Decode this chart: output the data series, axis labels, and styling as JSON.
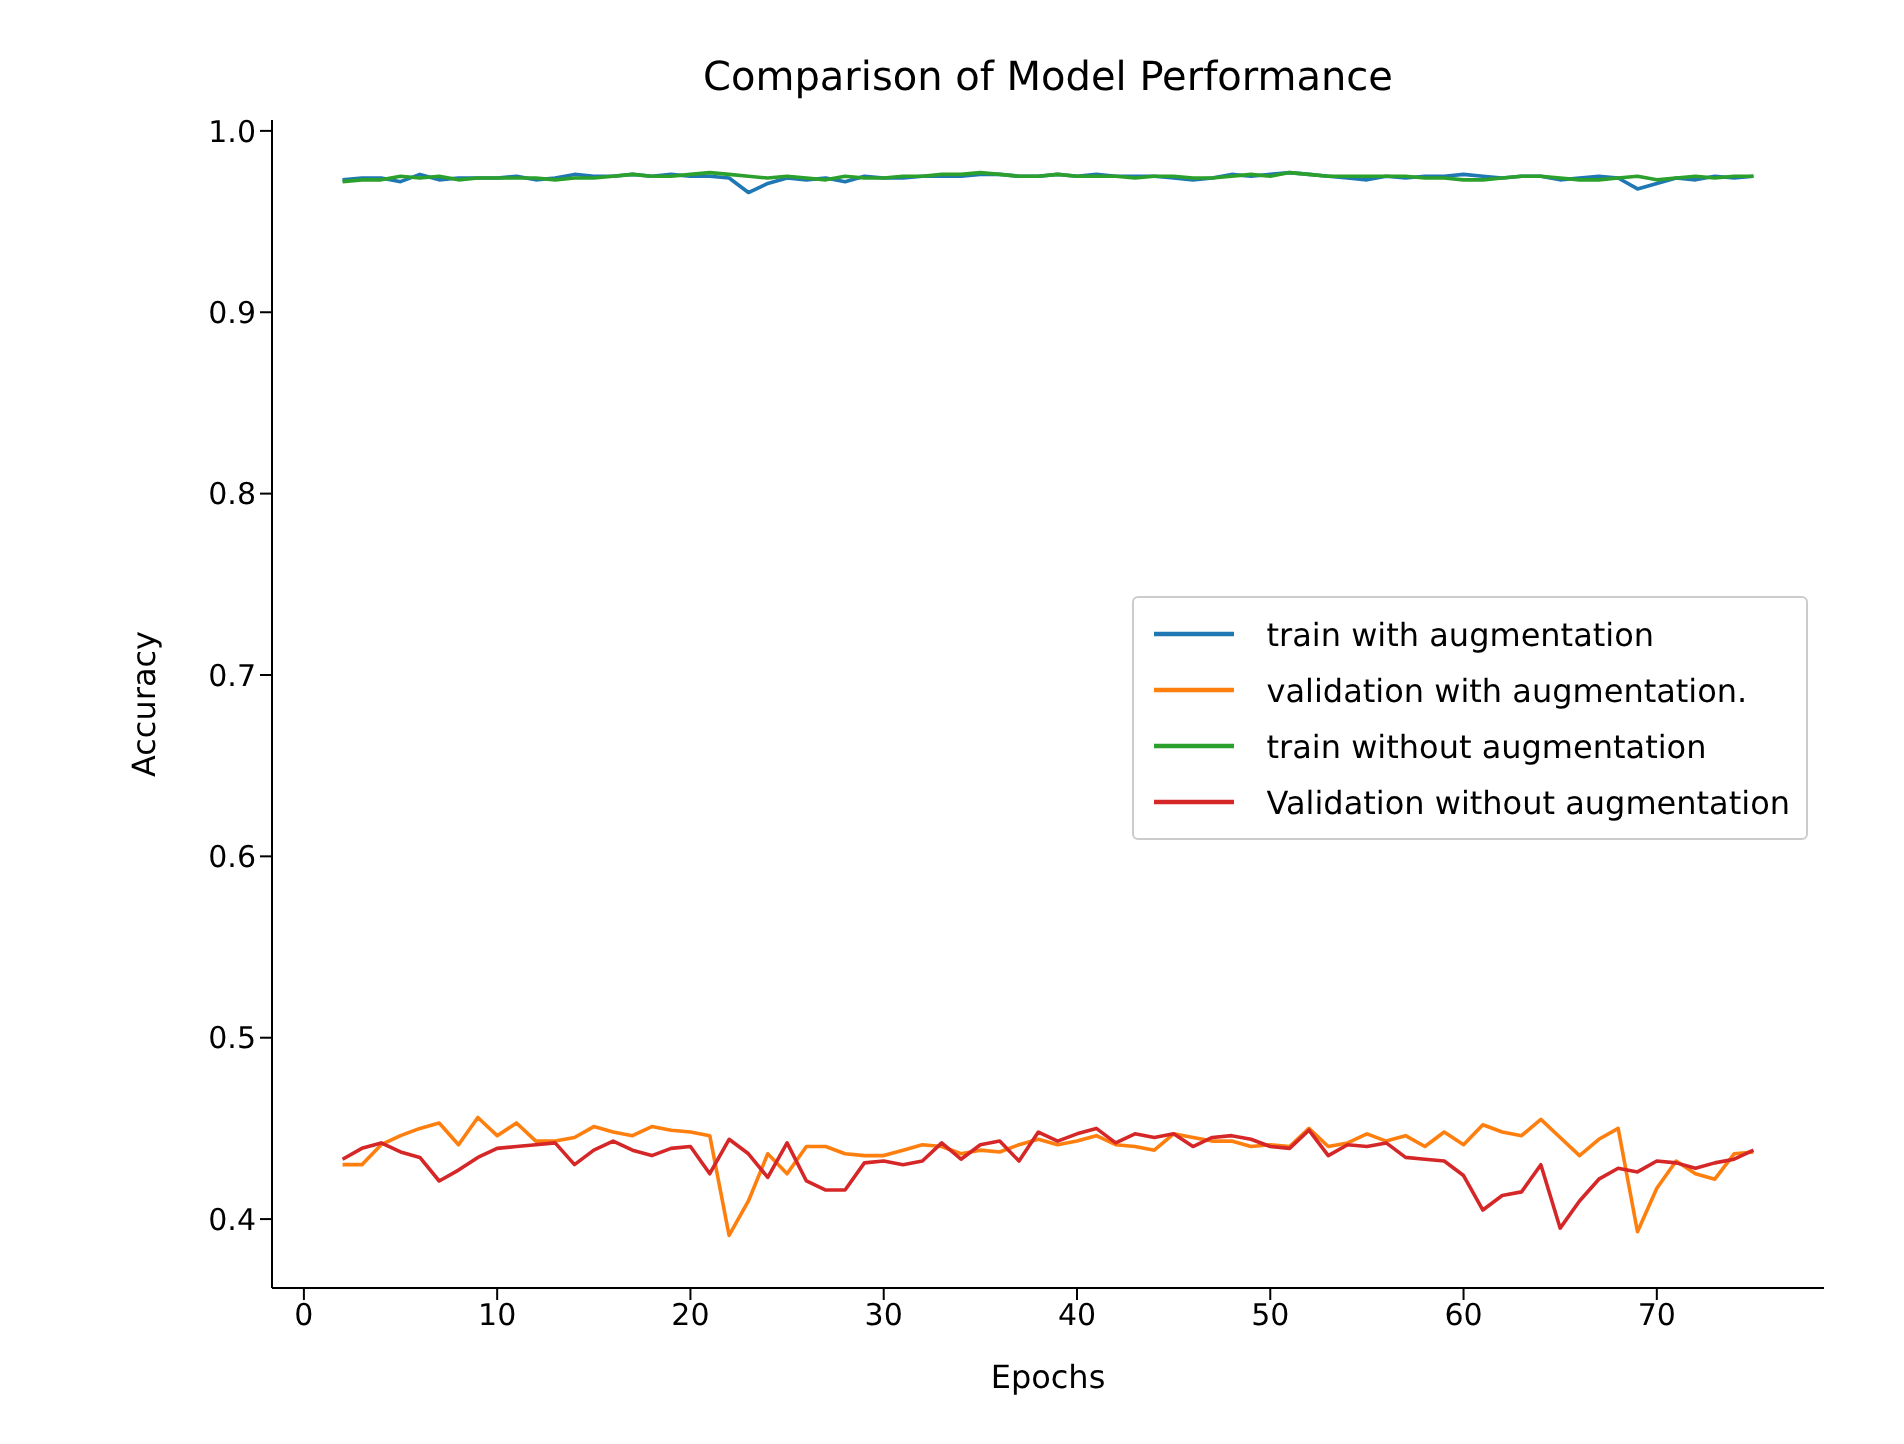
{
  "chart_data": {
    "type": "line",
    "title": "Comparison of Model Performance",
    "xlabel": "Epochs",
    "ylabel": "Accuracy",
    "x": [
      2,
      3,
      4,
      5,
      6,
      7,
      8,
      9,
      10,
      11,
      12,
      13,
      14,
      15,
      16,
      17,
      18,
      19,
      20,
      21,
      22,
      23,
      24,
      25,
      26,
      27,
      28,
      29,
      30,
      31,
      32,
      33,
      34,
      35,
      36,
      37,
      38,
      39,
      40,
      41,
      42,
      43,
      44,
      45,
      46,
      47,
      48,
      49,
      50,
      51,
      52,
      53,
      54,
      55,
      56,
      57,
      58,
      59,
      60,
      61,
      62,
      63,
      64,
      65,
      66,
      67,
      68,
      69,
      70,
      71,
      72,
      73,
      74,
      75
    ],
    "series": [
      {
        "name": "train with augmentation",
        "color": "#1f77b4",
        "values": [
          0.973,
          0.974,
          0.974,
          0.972,
          0.976,
          0.973,
          0.974,
          0.974,
          0.974,
          0.975,
          0.973,
          0.974,
          0.976,
          0.975,
          0.975,
          0.976,
          0.975,
          0.976,
          0.975,
          0.975,
          0.974,
          0.966,
          0.971,
          0.974,
          0.973,
          0.974,
          0.972,
          0.975,
          0.974,
          0.974,
          0.975,
          0.975,
          0.975,
          0.976,
          0.976,
          0.975,
          0.975,
          0.976,
          0.975,
          0.976,
          0.975,
          0.975,
          0.975,
          0.974,
          0.973,
          0.974,
          0.976,
          0.975,
          0.976,
          0.977,
          0.976,
          0.975,
          0.974,
          0.973,
          0.975,
          0.974,
          0.975,
          0.975,
          0.976,
          0.975,
          0.974,
          0.975,
          0.975,
          0.973,
          0.974,
          0.975,
          0.974,
          0.968,
          0.971,
          0.974,
          0.973,
          0.975,
          0.974,
          0.975
        ]
      },
      {
        "name": "validation with augmentation.",
        "color": "#ff7f0e",
        "values": [
          0.43,
          0.43,
          0.441,
          0.446,
          0.45,
          0.453,
          0.441,
          0.456,
          0.446,
          0.453,
          0.443,
          0.443,
          0.445,
          0.451,
          0.448,
          0.446,
          0.451,
          0.449,
          0.448,
          0.446,
          0.391,
          0.41,
          0.436,
          0.425,
          0.44,
          0.44,
          0.436,
          0.435,
          0.435,
          0.438,
          0.441,
          0.44,
          0.436,
          0.438,
          0.437,
          0.441,
          0.444,
          0.441,
          0.443,
          0.446,
          0.441,
          0.44,
          0.438,
          0.447,
          0.445,
          0.443,
          0.443,
          0.44,
          0.441,
          0.44,
          0.45,
          0.44,
          0.442,
          0.447,
          0.443,
          0.446,
          0.44,
          0.448,
          0.441,
          0.452,
          0.448,
          0.446,
          0.455,
          0.445,
          0.435,
          0.444,
          0.45,
          0.393,
          0.417,
          0.432,
          0.425,
          0.422,
          0.436,
          0.437
        ]
      },
      {
        "name": "train without augmentation",
        "color": "#2ca02c",
        "values": [
          0.972,
          0.973,
          0.973,
          0.975,
          0.974,
          0.975,
          0.973,
          0.974,
          0.974,
          0.974,
          0.974,
          0.973,
          0.974,
          0.974,
          0.975,
          0.976,
          0.975,
          0.975,
          0.976,
          0.977,
          0.976,
          0.975,
          0.974,
          0.975,
          0.974,
          0.973,
          0.975,
          0.974,
          0.974,
          0.975,
          0.975,
          0.976,
          0.976,
          0.977,
          0.976,
          0.975,
          0.975,
          0.976,
          0.975,
          0.975,
          0.975,
          0.974,
          0.975,
          0.975,
          0.974,
          0.974,
          0.975,
          0.976,
          0.975,
          0.977,
          0.976,
          0.975,
          0.975,
          0.975,
          0.975,
          0.975,
          0.974,
          0.974,
          0.973,
          0.973,
          0.974,
          0.975,
          0.975,
          0.974,
          0.973,
          0.973,
          0.974,
          0.975,
          0.973,
          0.974,
          0.975,
          0.974,
          0.975,
          0.975
        ]
      },
      {
        "name": "Validation without augmentation",
        "color": "#d62728",
        "values": [
          0.433,
          0.439,
          0.442,
          0.437,
          0.434,
          0.421,
          0.427,
          0.434,
          0.439,
          0.44,
          0.441,
          0.442,
          0.43,
          0.438,
          0.443,
          0.438,
          0.435,
          0.439,
          0.44,
          0.425,
          0.444,
          0.436,
          0.423,
          0.442,
          0.421,
          0.416,
          0.416,
          0.431,
          0.432,
          0.43,
          0.432,
          0.442,
          0.433,
          0.441,
          0.443,
          0.432,
          0.448,
          0.443,
          0.447,
          0.45,
          0.442,
          0.447,
          0.445,
          0.447,
          0.44,
          0.445,
          0.446,
          0.444,
          0.44,
          0.439,
          0.449,
          0.435,
          0.441,
          0.44,
          0.442,
          0.434,
          0.433,
          0.432,
          0.424,
          0.405,
          0.413,
          0.415,
          0.43,
          0.395,
          0.41,
          0.422,
          0.428,
          0.426,
          0.432,
          0.431,
          0.428,
          0.431,
          0.433,
          0.438
        ]
      }
    ],
    "xlim": [
      -1.65,
      78.65
    ],
    "xticks": [
      0,
      10,
      20,
      30,
      40,
      50,
      60,
      70
    ],
    "ylim": [
      0.362,
      1.006
    ],
    "yticks": [
      0.4,
      0.5,
      0.6,
      0.7,
      0.8,
      0.9,
      {
        "value": 1,
        "label": "1.0"
      }
    ],
    "grid": false,
    "legend": "right"
  }
}
